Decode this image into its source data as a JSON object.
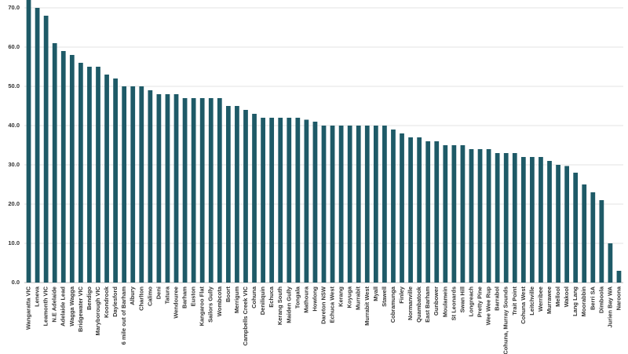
{
  "chart_data": {
    "type": "bar",
    "color": "#1e5a67",
    "categories": [
      "Wangaratta VIC",
      "Leneva",
      "Leamonth VIC",
      "N.E Adelaide",
      "Adelaide Lead",
      "Wagga Wagga",
      "Bridgewater VIC",
      "Bendigo",
      "Maryborough VIC",
      "Koondrook",
      "Daylesford",
      "6 mile out of Barham",
      "Albury",
      "Charlton",
      "Calimo",
      "Deni",
      "Tatura",
      "Wendouree",
      "Barham",
      "Euston",
      "Kangaroo Flat",
      "Sailors Gully",
      "Wombcota",
      "Boort",
      "Merrigum",
      "Campbells Creek VIC",
      "Cohuna",
      "Deniliquin",
      "Echuca",
      "Kerang South",
      "Maiden Gully",
      "Tongala",
      "Mathoura",
      "Howlong",
      "Dareton NSW",
      "Echuca West",
      "Kerang",
      "Koyuga",
      "Murrabit",
      "Murrabit West",
      "Myall",
      "Stawell",
      "Cobramunga",
      "Finley",
      "Normanville",
      "Quambatook",
      "East Barham",
      "Gunbower",
      "Moulamein",
      "St Leonards",
      "Swan Hill",
      "Longreach",
      "Pretty Pine",
      "Wee Wee Rup",
      "Barrabol",
      "Cohuna, Murray Sounds",
      "Trait Point",
      "Cohuna West",
      "Leitchville",
      "Werribee",
      "Murrawee",
      "Mellool",
      "Wakool",
      "Lang Lang",
      "Moorabbin",
      "Berri SA",
      "Dimboola",
      "Jurien Bay WA",
      "Naroona"
    ],
    "values": [
      72,
      70,
      68,
      61,
      59,
      58,
      56,
      55,
      55,
      53,
      52,
      50,
      50,
      50,
      49,
      48,
      48,
      48,
      47,
      47,
      47,
      47,
      47,
      45,
      45,
      44,
      43,
      42,
      42,
      42,
      42,
      42,
      41.5,
      41,
      40,
      40,
      40,
      40,
      40,
      40,
      40,
      40,
      39,
      38,
      37,
      37,
      36,
      36,
      35,
      35,
      35,
      34,
      34,
      34,
      33,
      33,
      33,
      32,
      32,
      32,
      31,
      30,
      29.7,
      28,
      25,
      23,
      21,
      10,
      3
    ],
    "ylim": [
      0,
      72
    ],
    "yticks": [
      {
        "value": 0,
        "label": "0.0"
      },
      {
        "value": 10,
        "label": "10.0"
      },
      {
        "value": 20,
        "label": "20.0"
      },
      {
        "value": 30,
        "label": "30.0"
      },
      {
        "value": 40,
        "label": "40.0"
      },
      {
        "value": 50,
        "label": "50.0"
      },
      {
        "value": 60,
        "label": "60.0"
      },
      {
        "value": 70,
        "label": "70.0"
      }
    ],
    "grid": true
  }
}
